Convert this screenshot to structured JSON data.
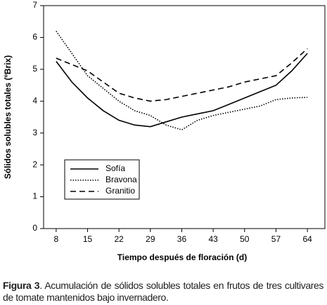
{
  "chart_data": {
    "type": "line",
    "ylabel": "Sólidos solubles totales (ºBrix)",
    "xlabel": "Tiempo después de floración (d)",
    "x": [
      8,
      11.5,
      15,
      18.5,
      22,
      25.5,
      29,
      32.5,
      36,
      39.5,
      43,
      46.5,
      50,
      53.5,
      57,
      60.5,
      64
    ],
    "xlim": [
      5.2,
      67.9
    ],
    "xticks": [
      8,
      15,
      22,
      29,
      36,
      43,
      50,
      57,
      64
    ],
    "ylim": [
      0,
      7
    ],
    "yticks": [
      0,
      1,
      2,
      3,
      4,
      5,
      6,
      7
    ],
    "series": [
      {
        "name": "Sofía",
        "color": "#000000",
        "style": "solid",
        "values": [
          5.25,
          4.6,
          4.1,
          3.7,
          3.4,
          3.25,
          3.2,
          3.35,
          3.5,
          3.6,
          3.7,
          3.9,
          4.1,
          4.3,
          4.5,
          4.95,
          5.5
        ]
      },
      {
        "name": "Bravona",
        "color": "#000000",
        "style": "dotted",
        "values": [
          6.2,
          5.5,
          4.8,
          4.4,
          4.0,
          3.7,
          3.55,
          3.25,
          3.1,
          3.4,
          3.55,
          3.65,
          3.75,
          3.85,
          4.05,
          4.1,
          4.12
        ]
      },
      {
        "name": "Granitio",
        "color": "#000000",
        "style": "dashed",
        "values": [
          5.35,
          5.15,
          4.95,
          4.6,
          4.25,
          4.1,
          4.0,
          4.05,
          4.15,
          4.25,
          4.35,
          4.45,
          4.6,
          4.7,
          4.8,
          5.2,
          5.65
        ]
      }
    ]
  },
  "caption": {
    "label": "Figura 3",
    "text": ". Acumulación de sólidos solubles totales en frutos de tres cultivares de tomate mantenidos bajo invernadero."
  }
}
